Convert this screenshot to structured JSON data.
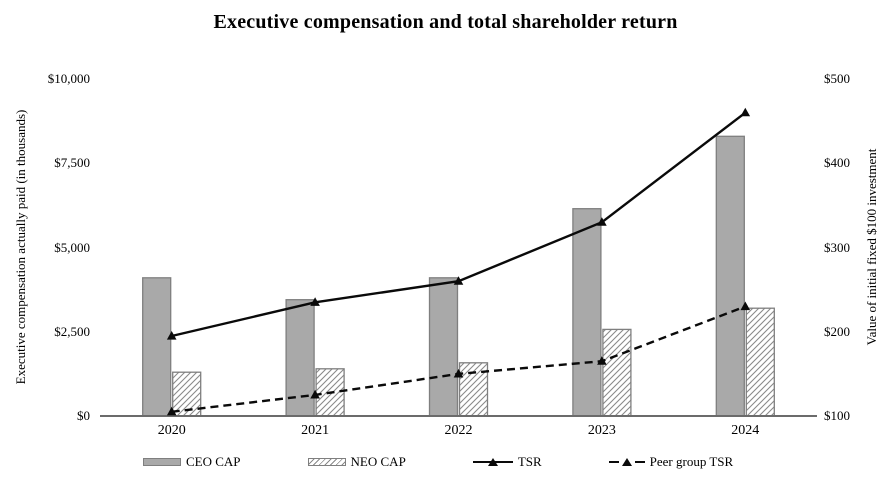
{
  "title": "Executive compensation and total shareholder return",
  "colors": {
    "bar_fill": "#a9a9a9",
    "bar_border": "#7f7f7f",
    "hatch_line": "#8a8a8a",
    "series_line": "#0a0a0a",
    "axis_line": "#6b6b6b",
    "text": "#000000"
  },
  "chart_data": {
    "type": "combo-bar-line",
    "title": "Executive compensation and total shareholder return",
    "categories": [
      "2020",
      "2021",
      "2022",
      "2023",
      "2024"
    ],
    "bar_series": [
      {
        "name": "CEO CAP",
        "axis": "left",
        "style": "solid-gray",
        "values": [
          4100,
          3450,
          4100,
          6150,
          8300
        ]
      },
      {
        "name": "NEO CAP",
        "axis": "left",
        "style": "diagonal-hatch",
        "values": [
          1300,
          1400,
          1580,
          2570,
          3200
        ]
      }
    ],
    "line_series": [
      {
        "name": "TSR",
        "axis": "right",
        "style": "solid",
        "marker": "filled-triangle",
        "values": [
          195,
          235,
          260,
          330,
          460
        ]
      },
      {
        "name": "Peer group TSR",
        "axis": "right",
        "style": "dashed",
        "marker": "filled-triangle",
        "values": [
          105,
          125,
          150,
          165,
          230
        ]
      }
    ],
    "left_axis": {
      "label": "Executive compensation actually paid (in thousands)",
      "min": 0,
      "max": 10000,
      "ticks": [
        {
          "label": "$0",
          "value": 0
        },
        {
          "label": "$2,500",
          "value": 2500
        },
        {
          "label": "$5,000",
          "value": 5000
        },
        {
          "label": "$7,500",
          "value": 7500
        },
        {
          "label": "$10,000",
          "value": 10000
        }
      ]
    },
    "right_axis": {
      "label": "Value of initial fixed $100 investment",
      "min": 100,
      "max": 500,
      "ticks": [
        {
          "label": "$100",
          "value": 100
        },
        {
          "label": "$200",
          "value": 200
        },
        {
          "label": "$300",
          "value": 300
        },
        {
          "label": "$400",
          "value": 400
        },
        {
          "label": "$500",
          "value": 500
        }
      ]
    },
    "legend": [
      "CEO CAP",
      "NEO CAP",
      "TSR",
      "Peer group TSR"
    ],
    "legend_position": "bottom",
    "gridlines": false
  }
}
